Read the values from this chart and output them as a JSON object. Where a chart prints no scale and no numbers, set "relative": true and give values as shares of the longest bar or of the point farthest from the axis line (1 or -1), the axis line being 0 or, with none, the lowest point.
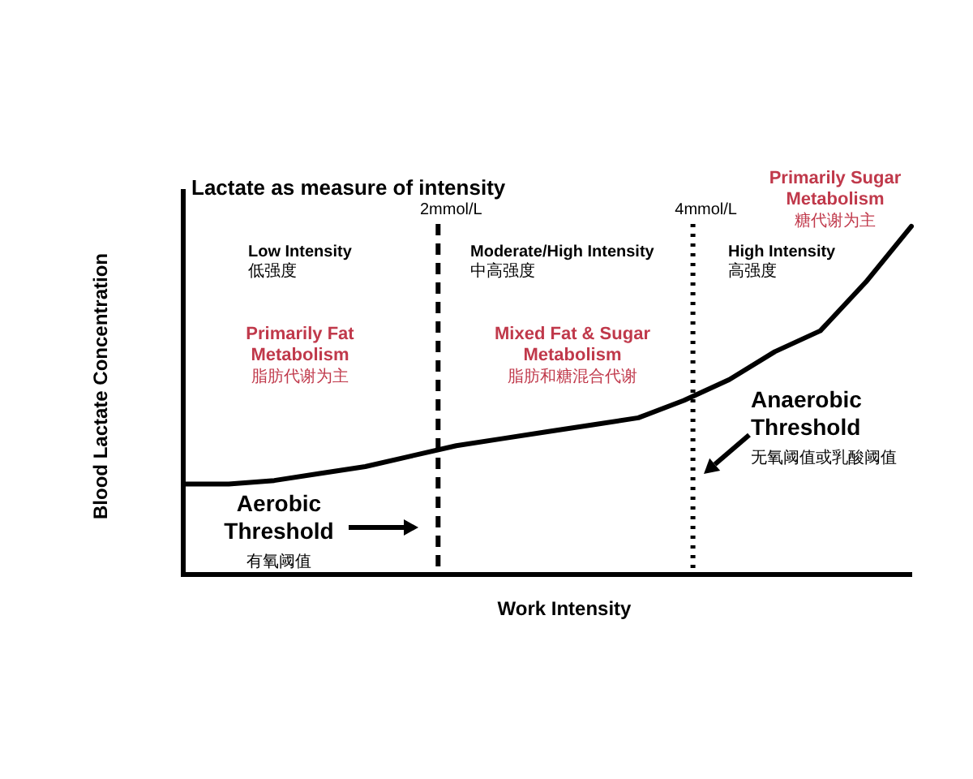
{
  "chart_data": {
    "type": "line",
    "title": "Lactate as measure of intensity",
    "xlabel": "Work Intensity",
    "ylabel": "Blood Lactate Concentration",
    "relative": true,
    "marker": "none",
    "line_style": "solid",
    "categories": [
      null,
      null,
      null,
      null,
      null,
      null,
      null,
      null,
      null,
      null,
      null,
      null,
      null,
      null,
      null,
      null,
      null
    ],
    "series": [
      {
        "color": "#000000",
        "values": [
          0.26,
          0.26,
          0.27,
          0.29,
          0.31,
          0.34,
          0.37,
          0.39,
          0.41,
          0.43,
          0.45,
          0.5,
          0.56,
          0.64,
          0.7,
          0.84,
          1
        ]
      }
    ],
    "ref_lines": [
      {
        "axis": "x",
        "label": "2mmol/L",
        "line_style": "dashed",
        "color": "#000000"
      },
      {
        "axis": "x",
        "label": "4mmol/L",
        "line_style": "dotted",
        "color": "#000000"
      }
    ],
    "annotations": [
      "Low Intensity\n低强度",
      "Primarily Fat\nMetabolism\n脂肪代谢为主",
      "Moderate/High Intensity\n中高强度",
      "Mixed Fat & Sugar\nMetabolism\n脂肪和糖混合代谢",
      "High Intensity\n高强度",
      "Primarily Sugar\nMetabolism\n糖代谢为主",
      "Aerobic\nThreshold\n有氧阈值",
      "Anaerobic\nThreshold\n无氧阈值或乳酸阈值"
    ]
  }
}
